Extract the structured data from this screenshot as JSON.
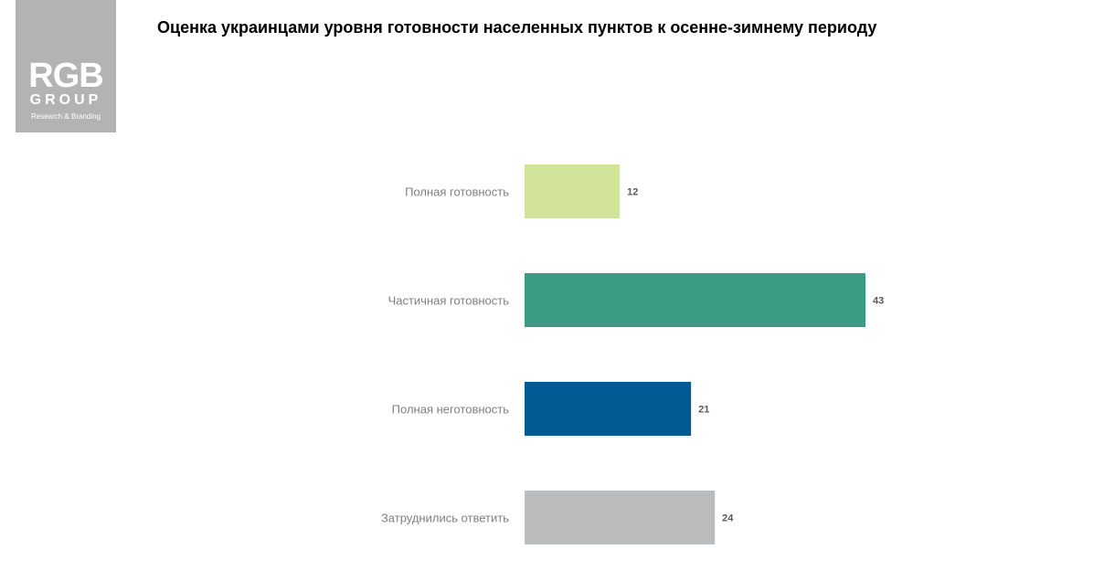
{
  "logo": {
    "mark": "RGB",
    "group": "GROUP",
    "subtitle": "Research & Branding"
  },
  "chart_data": {
    "type": "bar",
    "orientation": "horizontal",
    "title": "Оценка украинцами уровня готовности населенных пунктов к осенне-зимнему  периоду",
    "categories": [
      "Полная готовность",
      "Частичная готовность",
      "Полная неготовность",
      "Затруднились ответить"
    ],
    "values": [
      12,
      43,
      21,
      24
    ],
    "colors": [
      "#d1e39a",
      "#3c9b84",
      "#015a91",
      "#bbbcbe"
    ],
    "xlim": [
      0,
      43
    ],
    "grid": false,
    "legend": "none"
  }
}
